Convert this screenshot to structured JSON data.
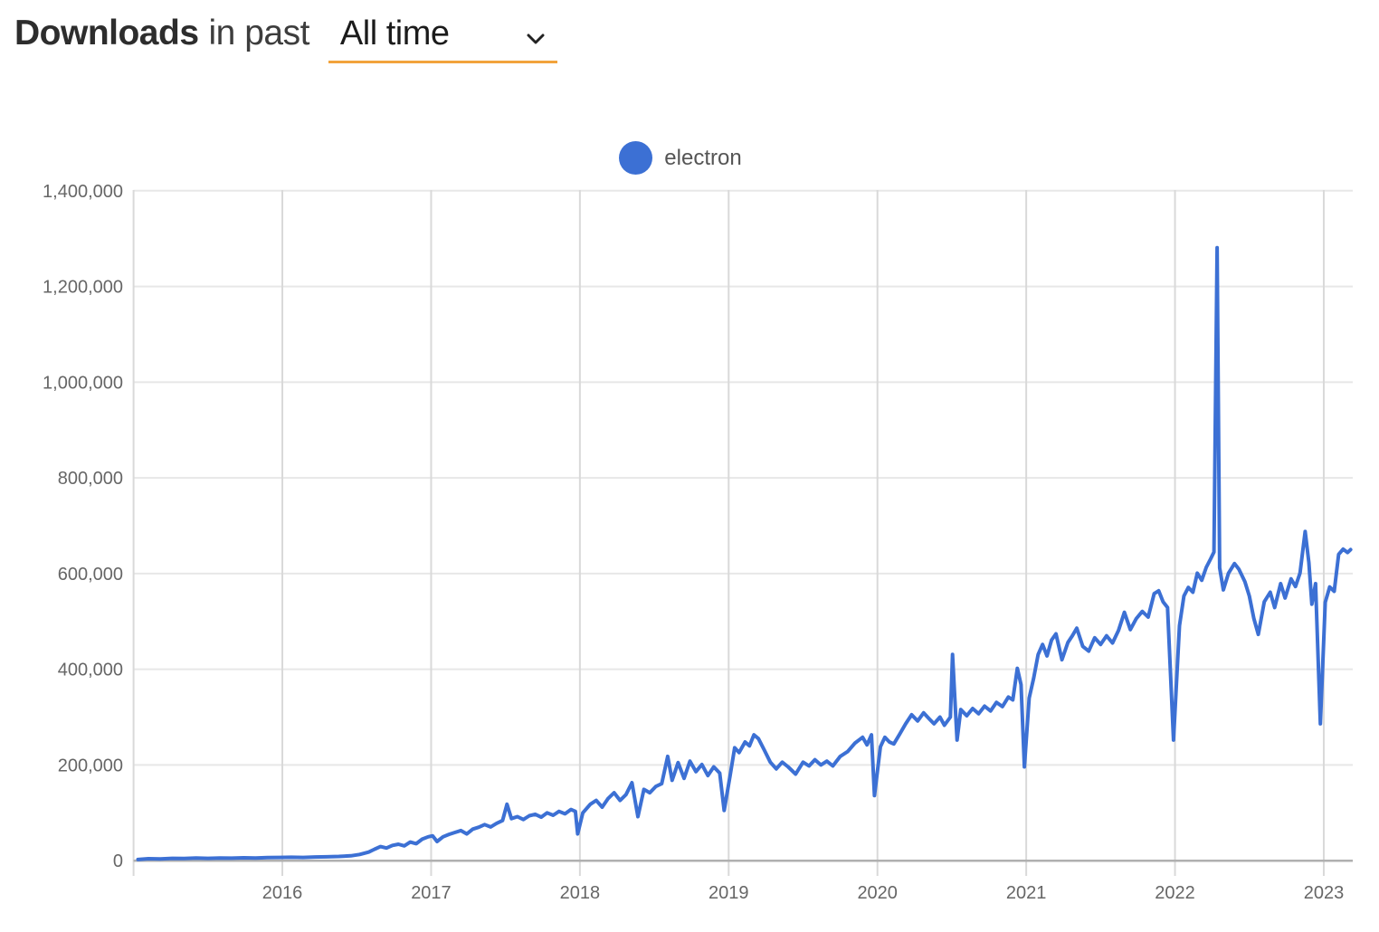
{
  "header": {
    "title_bold": "Downloads",
    "title_rest": "in past",
    "period_selected": "All time"
  },
  "legend": {
    "series_label": "electron"
  },
  "colors": {
    "series_blue": "#3C70D4",
    "select_underline_orange": "#F2A33C",
    "axis_label_gray": "#666666",
    "grid_light": "#e7e7e7",
    "grid_vertical": "#d9d9d9",
    "axis_line_gray": "#b0b0b0"
  },
  "chart_data": {
    "type": "line",
    "title": "Downloads in past All time",
    "xlabel": "",
    "ylabel": "",
    "legend_position": "top-center",
    "grid": true,
    "ylim": [
      0,
      1400000
    ],
    "xlim": [
      2015.0,
      2023.2
    ],
    "y_ticks": [
      0,
      200000,
      400000,
      600000,
      800000,
      1000000,
      1200000,
      1400000
    ],
    "x_grid_years": [
      2015,
      2016,
      2017,
      2018,
      2019,
      2020,
      2021,
      2022,
      2023
    ],
    "x_tick_labels": [
      2016,
      2017,
      2018,
      2019,
      2020,
      2021,
      2022,
      2023
    ],
    "series": [
      {
        "name": "electron",
        "color": "#3C70D4",
        "points": [
          [
            2015.03,
            2500
          ],
          [
            2015.1,
            4200
          ],
          [
            2015.18,
            3800
          ],
          [
            2015.26,
            5000
          ],
          [
            2015.34,
            4600
          ],
          [
            2015.42,
            5400
          ],
          [
            2015.5,
            5000
          ],
          [
            2015.58,
            5600
          ],
          [
            2015.66,
            5200
          ],
          [
            2015.74,
            6000
          ],
          [
            2015.82,
            5600
          ],
          [
            2015.9,
            6400
          ],
          [
            2015.98,
            6800
          ],
          [
            2016.06,
            7200
          ],
          [
            2016.14,
            6800
          ],
          [
            2016.22,
            7800
          ],
          [
            2016.3,
            8200
          ],
          [
            2016.38,
            8800
          ],
          [
            2016.46,
            10200
          ],
          [
            2016.52,
            13000
          ],
          [
            2016.58,
            18000
          ],
          [
            2016.62,
            24000
          ],
          [
            2016.66,
            29500
          ],
          [
            2016.7,
            26500
          ],
          [
            2016.74,
            32000
          ],
          [
            2016.78,
            34500
          ],
          [
            2016.82,
            31000
          ],
          [
            2016.86,
            39000
          ],
          [
            2016.9,
            35500
          ],
          [
            2016.94,
            45000
          ],
          [
            2016.98,
            50000
          ],
          [
            2017.01,
            52000
          ],
          [
            2017.04,
            40000
          ],
          [
            2017.08,
            50000
          ],
          [
            2017.12,
            55000
          ],
          [
            2017.16,
            59000
          ],
          [
            2017.2,
            63000
          ],
          [
            2017.24,
            56000
          ],
          [
            2017.28,
            66000
          ],
          [
            2017.32,
            70000
          ],
          [
            2017.36,
            75500
          ],
          [
            2017.4,
            70500
          ],
          [
            2017.44,
            78000
          ],
          [
            2017.48,
            84000
          ],
          [
            2017.51,
            118000
          ],
          [
            2017.54,
            88000
          ],
          [
            2017.58,
            92000
          ],
          [
            2017.62,
            86000
          ],
          [
            2017.66,
            94000
          ],
          [
            2017.7,
            97000
          ],
          [
            2017.74,
            91000
          ],
          [
            2017.78,
            100000
          ],
          [
            2017.82,
            95000
          ],
          [
            2017.86,
            103000
          ],
          [
            2017.9,
            98000
          ],
          [
            2017.94,
            107000
          ],
          [
            2017.97,
            103000
          ],
          [
            2017.985,
            56000
          ],
          [
            2018.02,
            100000
          ],
          [
            2018.07,
            118000
          ],
          [
            2018.11,
            126000
          ],
          [
            2018.15,
            112000
          ],
          [
            2018.19,
            130000
          ],
          [
            2018.23,
            142000
          ],
          [
            2018.27,
            126000
          ],
          [
            2018.31,
            138000
          ],
          [
            2018.35,
            163000
          ],
          [
            2018.39,
            92000
          ],
          [
            2018.43,
            149000
          ],
          [
            2018.47,
            142000
          ],
          [
            2018.51,
            155000
          ],
          [
            2018.55,
            161000
          ],
          [
            2018.59,
            218000
          ],
          [
            2018.62,
            168000
          ],
          [
            2018.66,
            205000
          ],
          [
            2018.7,
            172000
          ],
          [
            2018.74,
            208000
          ],
          [
            2018.78,
            186000
          ],
          [
            2018.82,
            201000
          ],
          [
            2018.86,
            178000
          ],
          [
            2018.9,
            196000
          ],
          [
            2018.94,
            183000
          ],
          [
            2018.97,
            105000
          ],
          [
            2019.01,
            178000
          ],
          [
            2019.04,
            236000
          ],
          [
            2019.07,
            226000
          ],
          [
            2019.11,
            248000
          ],
          [
            2019.14,
            240000
          ],
          [
            2019.17,
            263000
          ],
          [
            2019.2,
            255000
          ],
          [
            2019.24,
            231000
          ],
          [
            2019.28,
            206000
          ],
          [
            2019.32,
            192000
          ],
          [
            2019.36,
            206000
          ],
          [
            2019.4,
            196000
          ],
          [
            2019.45,
            181000
          ],
          [
            2019.5,
            206000
          ],
          [
            2019.54,
            198000
          ],
          [
            2019.58,
            211000
          ],
          [
            2019.62,
            200000
          ],
          [
            2019.66,
            208000
          ],
          [
            2019.7,
            198000
          ],
          [
            2019.75,
            218000
          ],
          [
            2019.8,
            228000
          ],
          [
            2019.85,
            246000
          ],
          [
            2019.9,
            258000
          ],
          [
            2019.93,
            242000
          ],
          [
            2019.96,
            263000
          ],
          [
            2019.98,
            136000
          ],
          [
            2020.02,
            238000
          ],
          [
            2020.05,
            258000
          ],
          [
            2020.08,
            248000
          ],
          [
            2020.11,
            244000
          ],
          [
            2020.15,
            265000
          ],
          [
            2020.19,
            286000
          ],
          [
            2020.23,
            305000
          ],
          [
            2020.27,
            292000
          ],
          [
            2020.31,
            309000
          ],
          [
            2020.35,
            296000
          ],
          [
            2020.38,
            286000
          ],
          [
            2020.42,
            300000
          ],
          [
            2020.45,
            283000
          ],
          [
            2020.49,
            300000
          ],
          [
            2020.505,
            431000
          ],
          [
            2020.52,
            340000
          ],
          [
            2020.535,
            252000
          ],
          [
            2020.56,
            316000
          ],
          [
            2020.6,
            303000
          ],
          [
            2020.64,
            318000
          ],
          [
            2020.68,
            307000
          ],
          [
            2020.72,
            323000
          ],
          [
            2020.76,
            313000
          ],
          [
            2020.8,
            331000
          ],
          [
            2020.84,
            322000
          ],
          [
            2020.88,
            342000
          ],
          [
            2020.91,
            336000
          ],
          [
            2020.94,
            402000
          ],
          [
            2020.965,
            368000
          ],
          [
            2020.988,
            196000
          ],
          [
            2021.02,
            340000
          ],
          [
            2021.05,
            381000
          ],
          [
            2021.08,
            431000
          ],
          [
            2021.11,
            452000
          ],
          [
            2021.14,
            428000
          ],
          [
            2021.17,
            461000
          ],
          [
            2021.2,
            474000
          ],
          [
            2021.24,
            420000
          ],
          [
            2021.28,
            456000
          ],
          [
            2021.31,
            470000
          ],
          [
            2021.34,
            486000
          ],
          [
            2021.38,
            448000
          ],
          [
            2021.42,
            438000
          ],
          [
            2021.46,
            466000
          ],
          [
            2021.5,
            452000
          ],
          [
            2021.54,
            470000
          ],
          [
            2021.58,
            455000
          ],
          [
            2021.62,
            481000
          ],
          [
            2021.66,
            519000
          ],
          [
            2021.7,
            483000
          ],
          [
            2021.74,
            506000
          ],
          [
            2021.78,
            521000
          ],
          [
            2021.82,
            509000
          ],
          [
            2021.86,
            558000
          ],
          [
            2021.89,
            564000
          ],
          [
            2021.92,
            541000
          ],
          [
            2021.95,
            529000
          ],
          [
            2021.99,
            252000
          ],
          [
            2022.03,
            491000
          ],
          [
            2022.06,
            553000
          ],
          [
            2022.09,
            571000
          ],
          [
            2022.12,
            561000
          ],
          [
            2022.15,
            601000
          ],
          [
            2022.18,
            586000
          ],
          [
            2022.21,
            613000
          ],
          [
            2022.24,
            631000
          ],
          [
            2022.262,
            645000
          ],
          [
            2022.283,
            1281000
          ],
          [
            2022.3,
            612000
          ],
          [
            2022.325,
            566000
          ],
          [
            2022.36,
            601000
          ],
          [
            2022.4,
            621000
          ],
          [
            2022.43,
            609000
          ],
          [
            2022.47,
            583000
          ],
          [
            2022.5,
            553000
          ],
          [
            2022.53,
            506000
          ],
          [
            2022.56,
            473000
          ],
          [
            2022.6,
            541000
          ],
          [
            2022.64,
            561000
          ],
          [
            2022.67,
            529000
          ],
          [
            2022.71,
            579000
          ],
          [
            2022.74,
            549000
          ],
          [
            2022.78,
            589000
          ],
          [
            2022.81,
            573000
          ],
          [
            2022.84,
            601000
          ],
          [
            2022.875,
            688000
          ],
          [
            2022.9,
            623000
          ],
          [
            2022.92,
            536000
          ],
          [
            2022.945,
            579000
          ],
          [
            2022.977,
            286000
          ],
          [
            2023.01,
            540000
          ],
          [
            2023.04,
            572000
          ],
          [
            2023.07,
            563000
          ],
          [
            2023.1,
            640000
          ],
          [
            2023.13,
            651000
          ],
          [
            2023.16,
            644000
          ],
          [
            2023.18,
            650000
          ]
        ]
      }
    ]
  }
}
